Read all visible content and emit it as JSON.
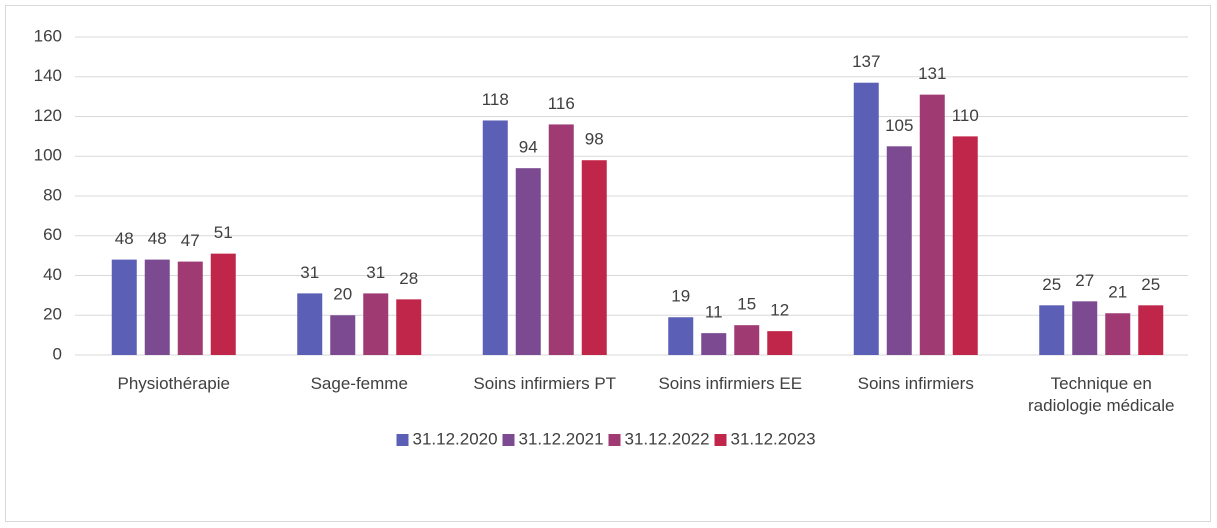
{
  "chart_data": {
    "type": "bar",
    "categories": [
      "Physiothérapie",
      "Sage-femme",
      "Soins infirmiers PT",
      "Soins infirmiers EE",
      "Soins infirmiers",
      "Technique en radiologie médicale"
    ],
    "series": [
      {
        "name": "31.12.2020",
        "color": "#5b5fb5",
        "values": [
          48,
          31,
          118,
          19,
          137,
          25
        ]
      },
      {
        "name": "31.12.2021",
        "color": "#7b4a91",
        "values": [
          48,
          20,
          94,
          11,
          105,
          27
        ]
      },
      {
        "name": "31.12.2022",
        "color": "#a03a73",
        "values": [
          47,
          31,
          116,
          15,
          131,
          21
        ]
      },
      {
        "name": "31.12.2023",
        "color": "#c0264a",
        "values": [
          51,
          28,
          98,
          12,
          110,
          25
        ]
      }
    ],
    "ylim": [
      0,
      160
    ],
    "yticks": [
      0,
      20,
      40,
      60,
      80,
      100,
      120,
      140,
      160
    ],
    "grid": true,
    "legend": "bottom"
  }
}
